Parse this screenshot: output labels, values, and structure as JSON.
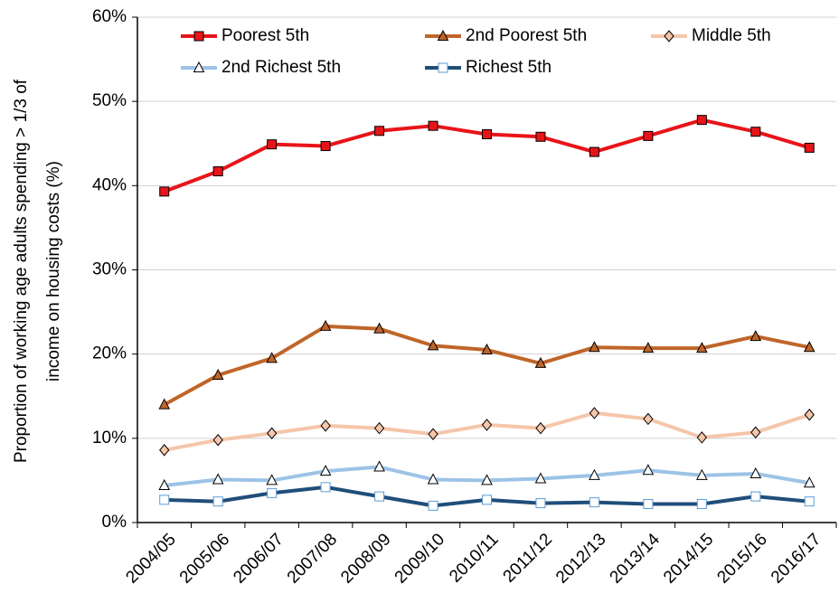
{
  "chart_data": {
    "type": "line",
    "ylabel": [
      "Proportion of working age adults spending > 1/3 of",
      "income on housing costs (%)"
    ],
    "categories": [
      "2004/05",
      "2005/06",
      "2006/07",
      "2007/08",
      "2008/09",
      "2009/10",
      "2010/11",
      "2011/12",
      "2012/13",
      "2013/14",
      "2014/15",
      "2015/16",
      "2016/17"
    ],
    "series": [
      {
        "name": "Poorest 5th",
        "color": "#e8141a",
        "marker": "square",
        "marker_fill": "#e8141a",
        "marker_stroke": "#000000",
        "values": [
          39.3,
          41.7,
          44.9,
          44.7,
          46.5,
          47.1,
          46.1,
          45.8,
          44.0,
          45.9,
          47.8,
          46.4,
          44.5
        ]
      },
      {
        "name": "2nd Poorest 5th",
        "color": "#c0652a",
        "marker": "triangle",
        "marker_fill": "#c0652a",
        "marker_stroke": "#000000",
        "values": [
          14.0,
          17.5,
          19.5,
          23.3,
          23.0,
          21.0,
          20.5,
          18.9,
          20.8,
          20.7,
          20.7,
          22.1,
          20.8
        ]
      },
      {
        "name": "Middle 5th",
        "color": "#f5c6aa",
        "marker": "diamond",
        "marker_fill": "#f5c6aa",
        "marker_stroke": "#000000",
        "values": [
          8.6,
          9.8,
          10.6,
          11.5,
          11.2,
          10.5,
          11.6,
          11.2,
          13.0,
          12.3,
          10.1,
          10.7,
          12.8
        ]
      },
      {
        "name": "2nd Richest 5th",
        "color": "#9dc3e6",
        "marker": "triangle",
        "marker_fill": "#ffffff",
        "marker_stroke": "#000000",
        "values": [
          4.4,
          5.1,
          5.0,
          6.1,
          6.6,
          5.1,
          5.0,
          5.2,
          5.6,
          6.2,
          5.6,
          5.8,
          4.7
        ]
      },
      {
        "name": "Richest 5th",
        "color": "#1f4e79",
        "marker": "square",
        "marker_fill": "#ffffff",
        "marker_stroke": "#5b9bd5",
        "values": [
          2.7,
          2.5,
          3.5,
          4.2,
          3.1,
          2.0,
          2.7,
          2.3,
          2.4,
          2.2,
          2.2,
          3.1,
          2.5
        ]
      }
    ],
    "ylim": [
      0,
      60
    ],
    "yticks": [
      {
        "value": 0,
        "label": "0%"
      },
      {
        "value": 10,
        "label": "10%"
      },
      {
        "value": 20,
        "label": "20%"
      },
      {
        "value": 30,
        "label": "30%"
      },
      {
        "value": 40,
        "label": "40%"
      },
      {
        "value": 50,
        "label": "50%"
      },
      {
        "value": 60,
        "label": "60%"
      }
    ],
    "grid": true
  }
}
